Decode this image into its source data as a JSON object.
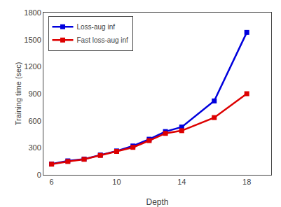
{
  "chart_data": {
    "type": "line",
    "x": [
      6,
      7,
      8,
      9,
      10,
      11,
      12,
      13,
      14,
      16,
      18
    ],
    "series": [
      {
        "name": "Loss-aug inf",
        "color": "#0000dd",
        "marker": "square",
        "values": [
          120,
          155,
          175,
          220,
          265,
          320,
          395,
          480,
          530,
          820,
          1580
        ]
      },
      {
        "name": "Fast loss-aug inf",
        "color": "#dd0000",
        "marker": "square",
        "values": [
          118,
          148,
          172,
          215,
          260,
          305,
          380,
          460,
          490,
          635,
          900
        ]
      }
    ],
    "xlabel": "Depth",
    "ylabel": "Training time (sec)",
    "xlim": [
      5.5,
      19.5
    ],
    "ylim": [
      0,
      1800
    ],
    "xticks": [
      6,
      10,
      14,
      18
    ],
    "yticks": [
      0,
      300,
      600,
      900,
      1200,
      1500,
      1800
    ],
    "legend": "upper left",
    "grid": false
  }
}
